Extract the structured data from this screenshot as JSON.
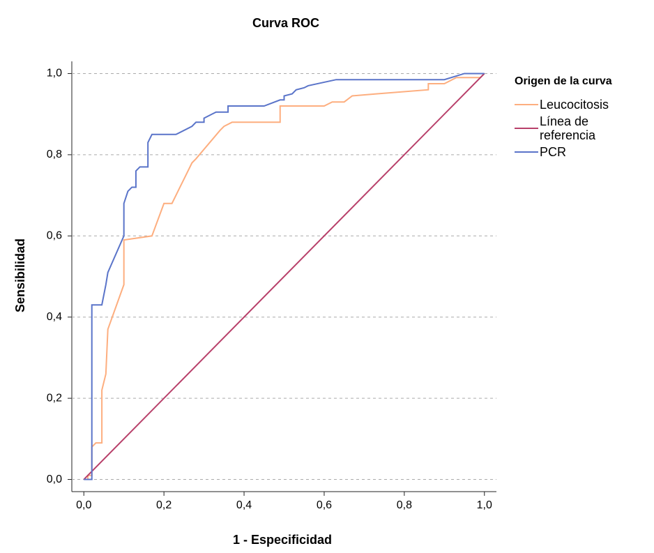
{
  "chart_data": {
    "type": "line",
    "title": "Curva ROC",
    "x_label": "1 - Especificidad",
    "y_label": "Sensibilidad",
    "legend_title": "Origen de la curva",
    "legend_position": "right",
    "grid": true,
    "xlim": [
      -0.03,
      1.03
    ],
    "ylim": [
      -0.03,
      1.03
    ],
    "xticks": [
      {
        "value": 0,
        "label": "0,0"
      },
      {
        "value": 0.2,
        "label": "0,2"
      },
      {
        "value": 0.4,
        "label": "0,4"
      },
      {
        "value": 0.6,
        "label": "0,6"
      },
      {
        "value": 0.8,
        "label": "0,8"
      },
      {
        "value": 1,
        "label": "1,0"
      }
    ],
    "yticks": [
      {
        "value": 0,
        "label": "0,0"
      },
      {
        "value": 0.2,
        "label": "0,2"
      },
      {
        "value": 0.4,
        "label": "0,4"
      },
      {
        "value": 0.6,
        "label": "0,6"
      },
      {
        "value": 0.8,
        "label": "0,8"
      },
      {
        "value": 1,
        "label": "1,0"
      }
    ],
    "series": [
      {
        "name": "Leucocitosis",
        "color": "#fdae7f",
        "x": [
          0,
          0.01,
          0.01,
          0.02,
          0.02,
          0.03,
          0.045,
          0.045,
          0.055,
          0.06,
          0.1,
          0.1,
          0.17,
          0.2,
          0.22,
          0.27,
          0.28,
          0.34,
          0.35,
          0.37,
          0.49,
          0.49,
          0.6,
          0.62,
          0.65,
          0.67,
          0.73,
          0.86,
          0.86,
          0.9,
          0.93,
          0.99,
          1
        ],
        "values": [
          0,
          0,
          0.01,
          0.01,
          0.08,
          0.09,
          0.09,
          0.22,
          0.26,
          0.37,
          0.48,
          0.59,
          0.6,
          0.68,
          0.68,
          0.78,
          0.79,
          0.86,
          0.87,
          0.88,
          0.88,
          0.92,
          0.92,
          0.93,
          0.93,
          0.945,
          0.95,
          0.96,
          0.975,
          0.975,
          0.99,
          0.99,
          1
        ]
      },
      {
        "name": "Línea de referencia",
        "color": "#b8406a",
        "x": [
          0,
          1
        ],
        "values": [
          0,
          1
        ]
      },
      {
        "name": "PCR",
        "color": "#5a74c9",
        "x": [
          0,
          0.02,
          0.02,
          0.045,
          0.055,
          0.06,
          0.1,
          0.1,
          0.11,
          0.12,
          0.13,
          0.13,
          0.14,
          0.16,
          0.16,
          0.17,
          0.23,
          0.27,
          0.28,
          0.3,
          0.3,
          0.32,
          0.33,
          0.36,
          0.36,
          0.45,
          0.49,
          0.5,
          0.5,
          0.52,
          0.53,
          0.55,
          0.56,
          0.63,
          0.9,
          0.95,
          1
        ],
        "values": [
          0,
          0,
          0.43,
          0.43,
          0.48,
          0.51,
          0.6,
          0.68,
          0.71,
          0.72,
          0.72,
          0.76,
          0.77,
          0.77,
          0.83,
          0.85,
          0.85,
          0.87,
          0.88,
          0.88,
          0.89,
          0.9,
          0.905,
          0.905,
          0.92,
          0.92,
          0.935,
          0.935,
          0.945,
          0.95,
          0.96,
          0.965,
          0.97,
          0.985,
          0.985,
          1,
          1
        ]
      }
    ]
  }
}
